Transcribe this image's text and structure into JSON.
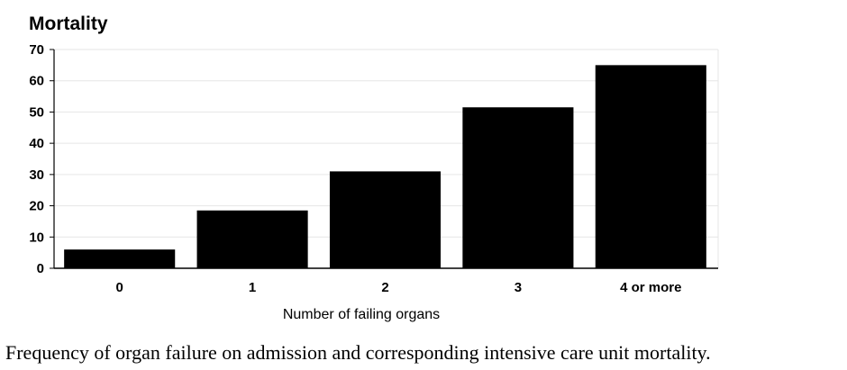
{
  "chart_data": {
    "type": "bar",
    "title": "",
    "ylabel": "Mortality",
    "xlabel": "Number of failing organs",
    "categories": [
      "0",
      "1",
      "2",
      "3",
      "4 or more"
    ],
    "values": [
      6,
      18.5,
      31,
      51.5,
      65
    ],
    "ylim": [
      0,
      70
    ],
    "yticks": [
      0,
      10,
      20,
      30,
      40,
      50,
      60,
      70
    ],
    "grid": true,
    "legend": "none",
    "bar_color": "#000000",
    "grid_color": "#e6e6e6"
  },
  "caption": "Frequency of organ failure on admission and corresponding intensive care unit mortality."
}
